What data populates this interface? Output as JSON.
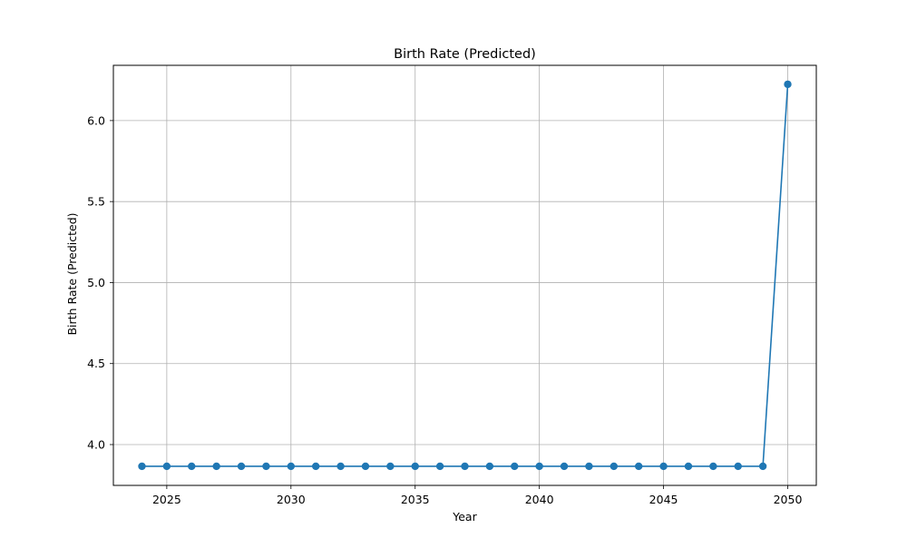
{
  "chart_data": {
    "type": "line",
    "title": "Birth Rate (Predicted)",
    "xlabel": "Year",
    "ylabel": "Birth Rate (Predicted)",
    "xlim": [
      2022.85,
      2051.15
    ],
    "ylim": [
      3.748,
      6.341
    ],
    "x_ticks": [
      2025,
      2030,
      2035,
      2040,
      2045,
      2050
    ],
    "y_ticks": [
      4.0,
      4.5,
      5.0,
      5.5,
      6.0
    ],
    "x_tick_labels": [
      "2025",
      "2030",
      "2035",
      "2040",
      "2045",
      "2050"
    ],
    "y_tick_labels": [
      "4.0",
      "4.5",
      "5.0",
      "5.5",
      "6.0"
    ],
    "grid": true,
    "marker": "circle",
    "series_color": "#1f77b4",
    "series": [
      {
        "x": [
          2024,
          2025,
          2026,
          2027,
          2028,
          2029,
          2030,
          2031,
          2032,
          2033,
          2034,
          2035,
          2036,
          2037,
          2038,
          2039,
          2040,
          2041,
          2042,
          2043,
          2044,
          2045,
          2046,
          2047,
          2048,
          2049,
          2050
        ],
        "values": [
          3.866,
          3.866,
          3.866,
          3.866,
          3.866,
          3.866,
          3.866,
          3.866,
          3.866,
          3.866,
          3.866,
          3.866,
          3.866,
          3.866,
          3.866,
          3.866,
          3.866,
          3.866,
          3.866,
          3.866,
          3.866,
          3.866,
          3.866,
          3.866,
          3.866,
          3.866,
          6.224
        ]
      }
    ]
  }
}
